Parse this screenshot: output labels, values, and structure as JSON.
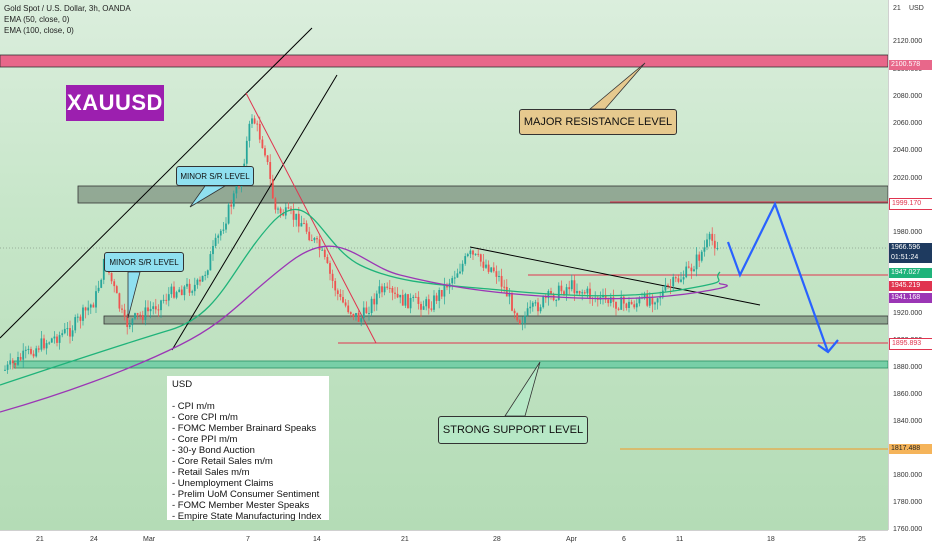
{
  "header": {
    "symbol_line": "Gold Spot / U.S. Dollar, 3h, OANDA",
    "ema1": "EMA (50, close, 0)",
    "ema2": "EMA (100, close, 0)"
  },
  "badge": "XAUUSD",
  "annotations": {
    "major_resistance": "MAJOR RESISTANCE LEVEL",
    "strong_support": "STRONG SUPPORT LEVEL",
    "minor_sr_1": "MINOR S/R LEVEL",
    "minor_sr_2": "MINOR S/R LEVEL"
  },
  "events": {
    "title": "USD",
    "items": [
      "- CPI m/m",
      "- Core CPI m/m",
      "- FOMC Member Brainard Speaks",
      "- Core PPI m/m",
      "- 30-y Bond Auction",
      "- Core Retail Sales m/m",
      "- Retail Sales m/m",
      "- Unemployment Claims",
      "- Prelim UoM Consumer Sentiment",
      "- FOMC Member Mester Speaks",
      "- Empire State Manufacturing Index"
    ]
  },
  "price_axis": {
    "currency": "USD",
    "top_label": "21",
    "ticks": [
      "2120.000",
      "2100.000",
      "2080.000",
      "2060.000",
      "2040.000",
      "2020.000",
      "1980.000",
      "1920.000",
      "1900.000",
      "1880.000",
      "1860.000",
      "1840.000",
      "1820.000",
      "1800.000",
      "1780.000",
      "1760.000"
    ]
  },
  "price_tags": {
    "res_high": "2100.578",
    "res_mid": "1999.170",
    "current": "1966.596",
    "countdown": "01:51:24",
    "ema50": "1947.027",
    "ema100_a": "1945.219",
    "ema100_b": "1941.168",
    "support": "1895.893",
    "low": "1817.488"
  },
  "time_axis": [
    "21",
    "24",
    "Mar",
    "7",
    "14",
    "21",
    "28",
    "Apr",
    "6",
    "11",
    "18",
    "25"
  ],
  "colors": {
    "res_zone": "#e8678a",
    "support_line": "#e0344f",
    "ema50": "#1fb37a",
    "ema100": "#9b36b5",
    "current_tag": "#1e3a5f",
    "projection": "#2962ff",
    "orange_line": "#f59a23"
  }
}
